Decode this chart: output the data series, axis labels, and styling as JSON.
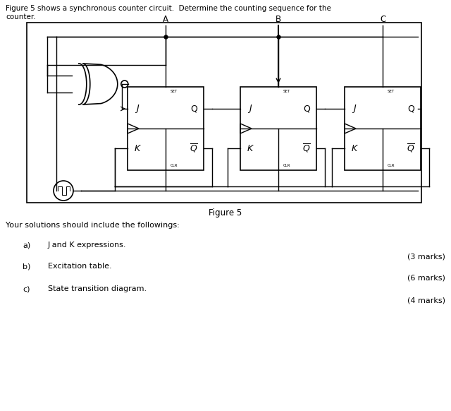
{
  "title_line1": "Figure 5 shows a synchronous counter circuit.  Determine the counting sequence for the",
  "title_line2": "counter.",
  "figure_label": "Figure 5",
  "solutions_header": "Your solutions should include the followings:",
  "items": [
    {
      "label": "a)",
      "text": "J and K expressions.",
      "marks": "(3 marks)"
    },
    {
      "label": "b)",
      "text": "Excitation table.",
      "marks": "(6 marks)"
    },
    {
      "label": "c)",
      "text": "State transition diagram.",
      "marks": "(4 marks)"
    }
  ],
  "bg_color": "#ffffff",
  "font_color": "#000000",
  "ff_labels": [
    "A",
    "B",
    "C"
  ]
}
